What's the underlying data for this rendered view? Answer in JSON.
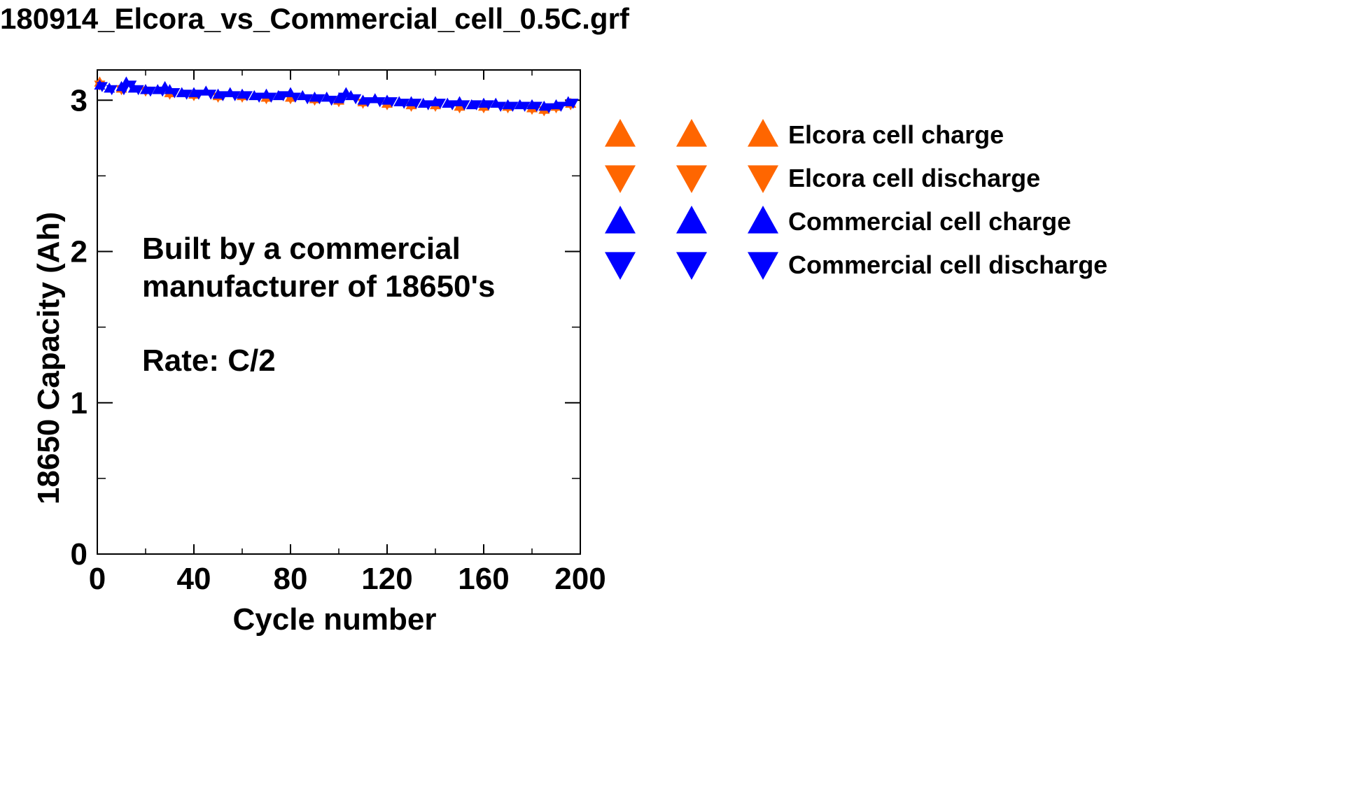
{
  "title": "180914_Elcora_vs_Commercial_cell_0.5C.grf",
  "colors": {
    "elcora": "#ff6600",
    "commercial": "#0000ff",
    "axis": "#000000"
  },
  "chart_data": {
    "type": "scatter",
    "xlabel": "Cycle number",
    "ylabel": "18650 Capacity (Ah)",
    "xlim": [
      0,
      200
    ],
    "ylim": [
      0,
      3.2
    ],
    "xticks": [
      0,
      40,
      80,
      120,
      160,
      200
    ],
    "yticks": [
      0,
      1,
      2,
      3
    ],
    "annotation": [
      "Built by a commercial",
      "manufacturer of 18650's",
      "",
      "Rate: C/2"
    ],
    "legend_position": "right",
    "series": [
      {
        "name": "Elcora cell charge",
        "marker": "triangle-up",
        "color": "#ff6600",
        "x": [
          1,
          10,
          20,
          30,
          40,
          50,
          60,
          70,
          80,
          90,
          100,
          110,
          120,
          130,
          140,
          150,
          160,
          170,
          180,
          185,
          190,
          196
        ],
        "y": [
          3.12,
          3.08,
          3.07,
          3.05,
          3.04,
          3.03,
          3.03,
          3.02,
          3.02,
          3.01,
          3.0,
          2.99,
          2.98,
          2.97,
          2.97,
          2.96,
          2.96,
          2.96,
          2.95,
          2.94,
          2.96,
          2.98
        ]
      },
      {
        "name": "Elcora cell discharge",
        "marker": "triangle-down",
        "color": "#ff6600",
        "x": [
          1,
          10,
          20,
          30,
          40,
          50,
          60,
          70,
          80,
          90,
          100,
          110,
          120,
          130,
          140,
          150,
          160,
          170,
          180,
          185,
          190,
          196
        ],
        "y": [
          3.1,
          3.07,
          3.06,
          3.04,
          3.03,
          3.02,
          3.02,
          3.01,
          3.01,
          3.0,
          2.99,
          2.98,
          2.97,
          2.96,
          2.96,
          2.95,
          2.95,
          2.95,
          2.94,
          2.93,
          2.95,
          2.97
        ]
      },
      {
        "name": "Commercial cell charge",
        "marker": "triangle-up",
        "color": "#0000ff",
        "x": [
          1,
          5,
          10,
          12,
          15,
          20,
          25,
          28,
          30,
          35,
          40,
          45,
          50,
          55,
          60,
          65,
          70,
          75,
          80,
          85,
          90,
          95,
          100,
          103,
          105,
          110,
          115,
          120,
          125,
          130,
          135,
          140,
          145,
          150,
          155,
          160,
          165,
          170,
          175,
          180,
          185,
          190,
          195
        ],
        "y": [
          3.1,
          3.08,
          3.09,
          3.12,
          3.08,
          3.07,
          3.07,
          3.09,
          3.07,
          3.05,
          3.05,
          3.06,
          3.04,
          3.05,
          3.04,
          3.03,
          3.04,
          3.03,
          3.05,
          3.03,
          3.02,
          3.02,
          3.01,
          3.05,
          3.03,
          3.0,
          3.01,
          3.0,
          2.99,
          2.99,
          2.98,
          2.99,
          2.98,
          2.99,
          2.97,
          2.98,
          2.98,
          2.97,
          2.97,
          2.97,
          2.96,
          2.97,
          2.99
        ]
      },
      {
        "name": "Commercial cell discharge",
        "marker": "triangle-down",
        "color": "#0000ff",
        "x": [
          2,
          6,
          11,
          14,
          17,
          22,
          27,
          32,
          37,
          42,
          47,
          52,
          57,
          62,
          67,
          72,
          77,
          82,
          87,
          92,
          97,
          102,
          107,
          112,
          117,
          122,
          127,
          132,
          137,
          142,
          147,
          152,
          157,
          162,
          167,
          172,
          177,
          182,
          187,
          192,
          197
        ],
        "y": [
          3.09,
          3.07,
          3.07,
          3.1,
          3.07,
          3.06,
          3.06,
          3.05,
          3.04,
          3.04,
          3.04,
          3.03,
          3.03,
          3.03,
          3.02,
          3.02,
          3.03,
          3.02,
          3.01,
          3.01,
          3.0,
          3.02,
          3.01,
          2.99,
          2.99,
          2.99,
          2.98,
          2.98,
          2.97,
          2.98,
          2.97,
          2.97,
          2.97,
          2.97,
          2.96,
          2.96,
          2.96,
          2.96,
          2.95,
          2.96,
          2.98
        ]
      }
    ]
  }
}
